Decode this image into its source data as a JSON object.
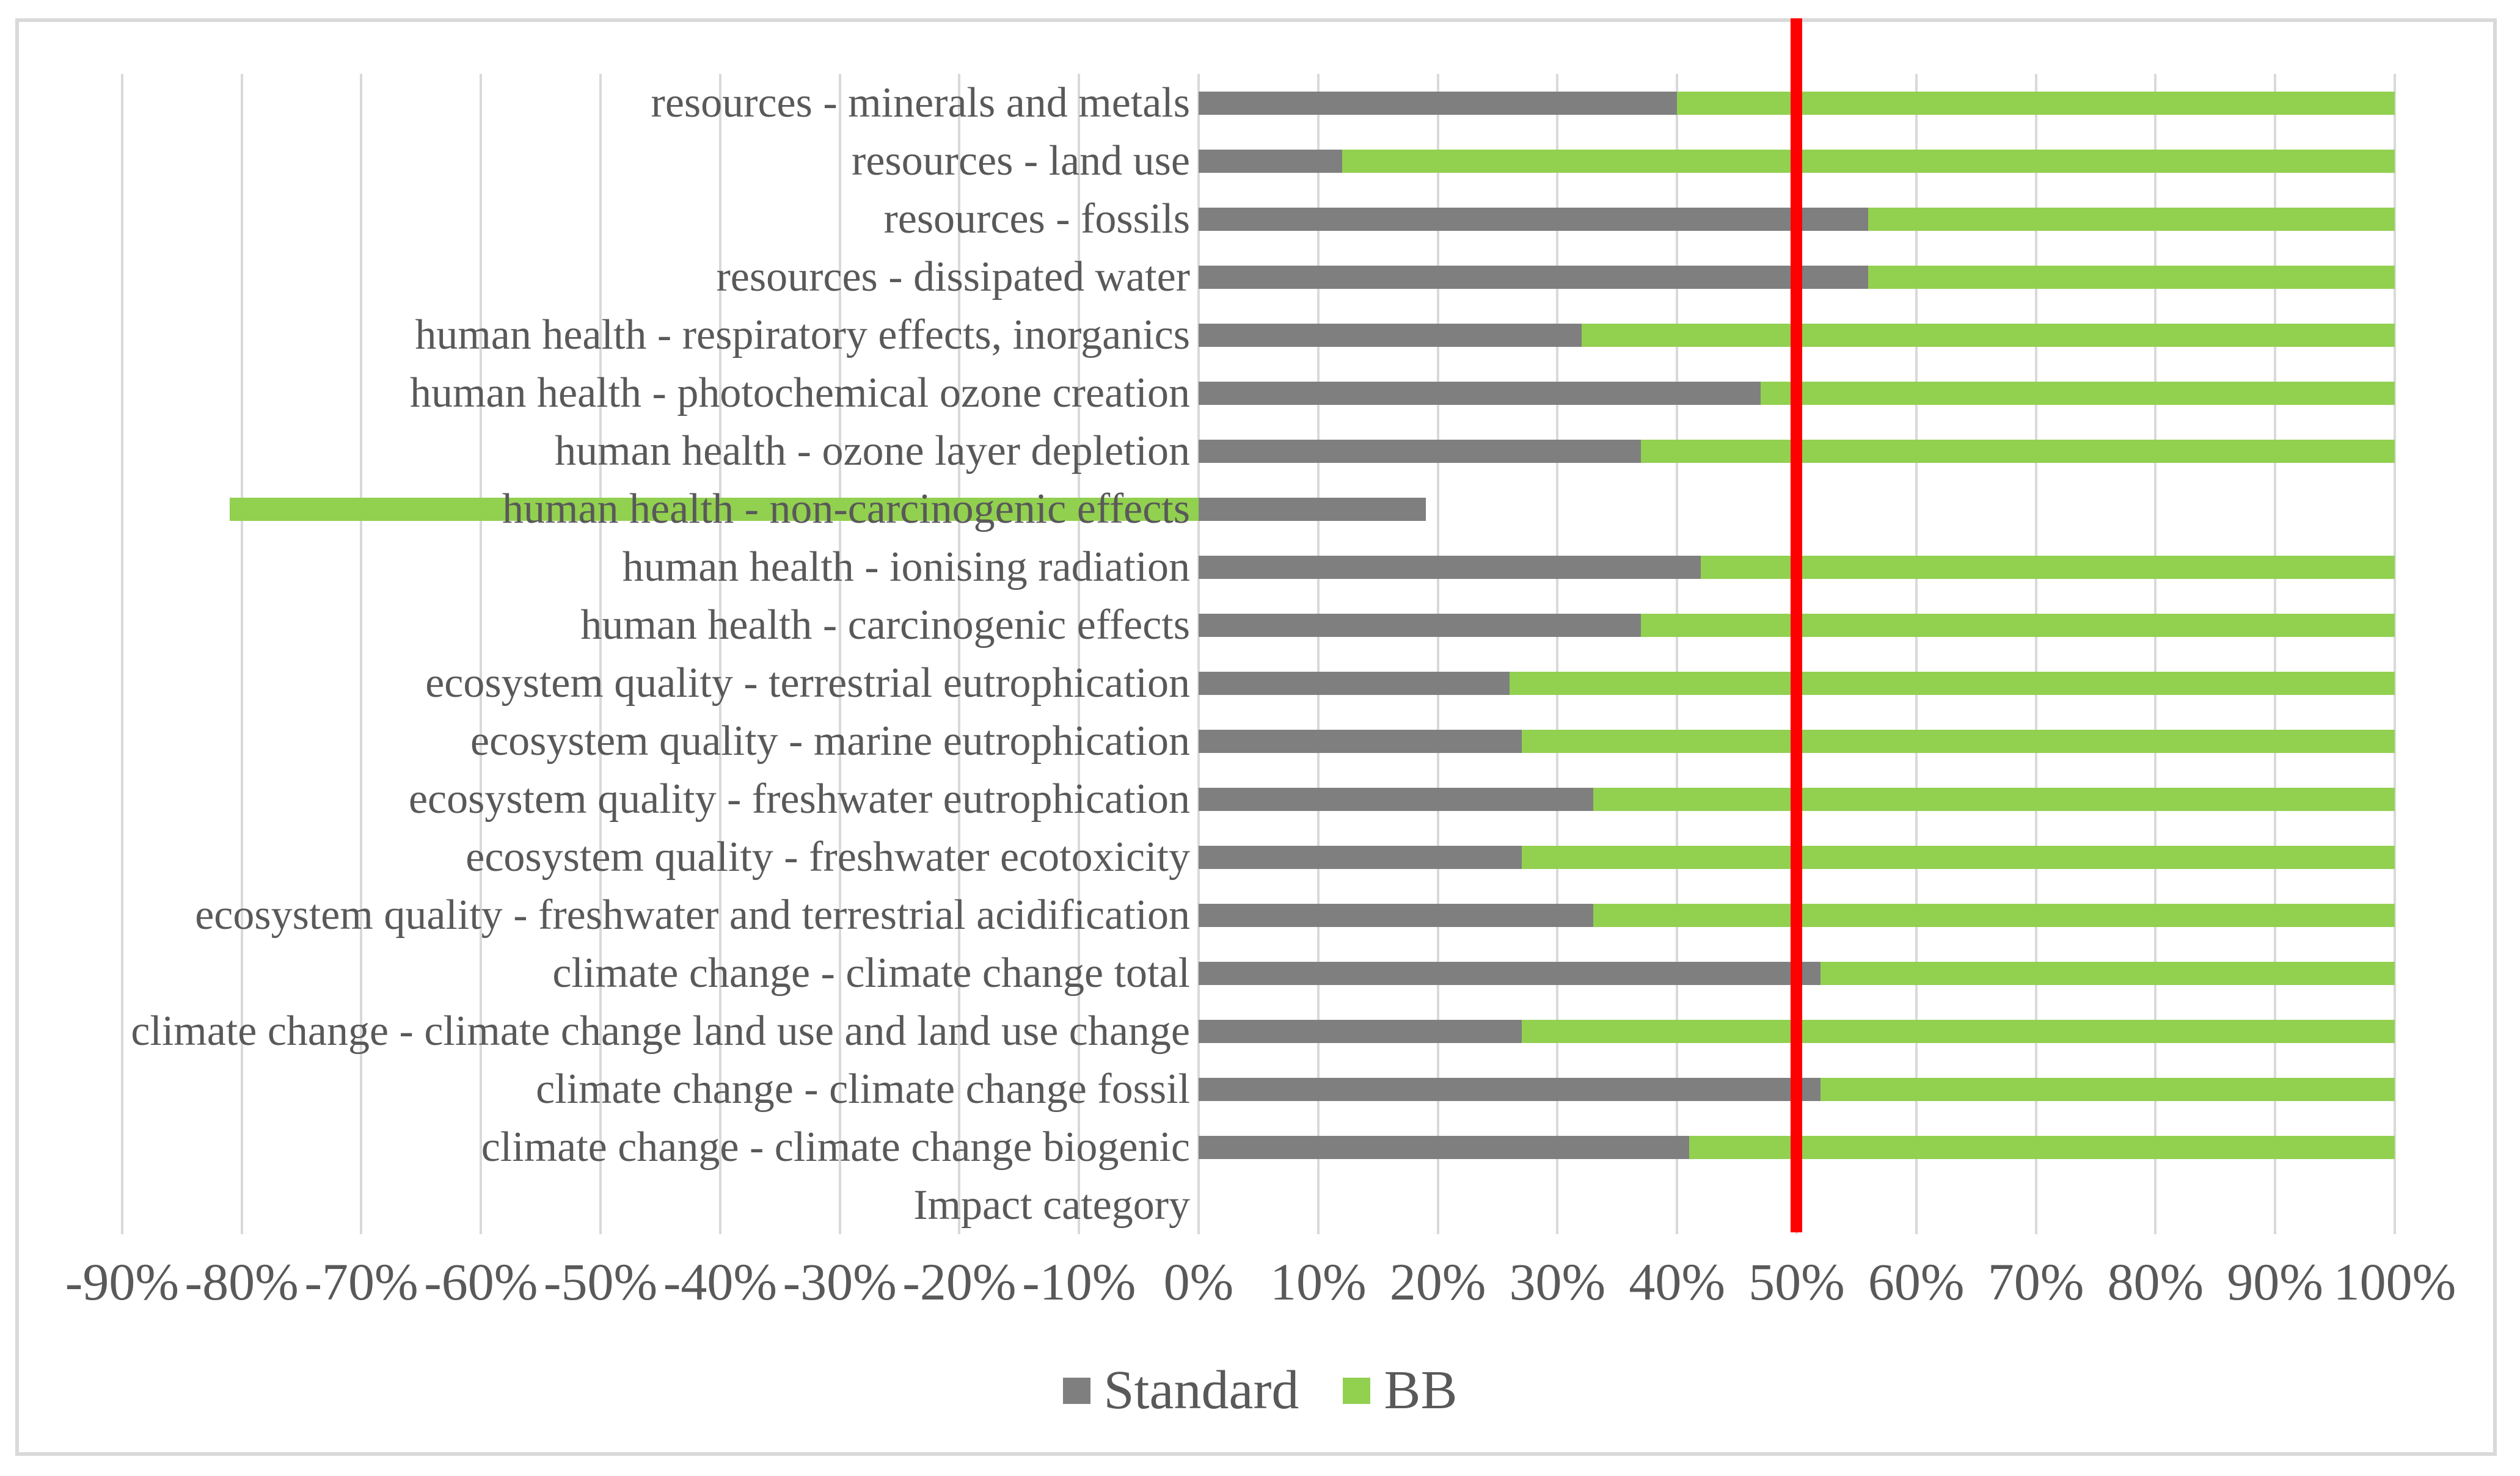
{
  "chart_data": {
    "type": "bar",
    "orientation": "horizontal",
    "stacked": true,
    "title": "",
    "category_axis_title": "Impact category",
    "xlim": [
      -90,
      100
    ],
    "grid": true,
    "legend_position": "bottom",
    "x_tick_labels": [
      "-90%",
      "-80%",
      "-70%",
      "-60%",
      "-50%",
      "-40%",
      "-30%",
      "-20%",
      "-10%",
      "0%",
      "10%",
      "20%",
      "30%",
      "40%",
      "50%",
      "60%",
      "70%",
      "80%",
      "90%",
      "100%"
    ],
    "x_tick_values": [
      -90,
      -80,
      -70,
      -60,
      -50,
      -40,
      -30,
      -20,
      -10,
      0,
      10,
      20,
      30,
      40,
      50,
      60,
      70,
      80,
      90,
      100
    ],
    "categories": [
      "resources - minerals and metals",
      "resources - land use",
      "resources - fossils",
      "resources - dissipated water",
      "human health - respiratory effects, inorganics",
      "human health - photochemical ozone creation",
      "human health - ozone layer depletion",
      "human health - non-carcinogenic effects",
      "human health - ionising radiation",
      "human health - carcinogenic effects",
      "ecosystem quality - terrestrial eutrophication",
      "ecosystem quality - marine eutrophication",
      "ecosystem quality - freshwater eutrophication",
      "ecosystem quality - freshwater ecotoxicity",
      "ecosystem quality - freshwater and terrestrial acidification",
      "climate change - climate change total",
      "climate change - climate change land use and land use change",
      "climate change - climate change fossil",
      "climate change - climate change biogenic"
    ],
    "series": [
      {
        "name": "Standard",
        "color": "#7F7F7F",
        "values": [
          40,
          12,
          56,
          56,
          32,
          47,
          37,
          19,
          42,
          37,
          26,
          27,
          33,
          27,
          33,
          52,
          27,
          52,
          41
        ]
      },
      {
        "name": "BB",
        "color": "#92D050",
        "values": [
          60,
          88,
          44,
          44,
          68,
          53,
          63,
          -81,
          58,
          63,
          74,
          73,
          67,
          73,
          67,
          48,
          73,
          48,
          59
        ]
      }
    ],
    "reference_line": {
      "value": 50,
      "color": "#FF0000"
    }
  },
  "legend": {
    "items": [
      {
        "label": "Standard",
        "color": "#7F7F7F"
      },
      {
        "label": "BB",
        "color": "#92D050"
      }
    ]
  },
  "colors": {
    "grid": "#D9D9D9",
    "frame_border": "#D9D9D9",
    "text": "#595959",
    "background": "#FFFFFF"
  }
}
